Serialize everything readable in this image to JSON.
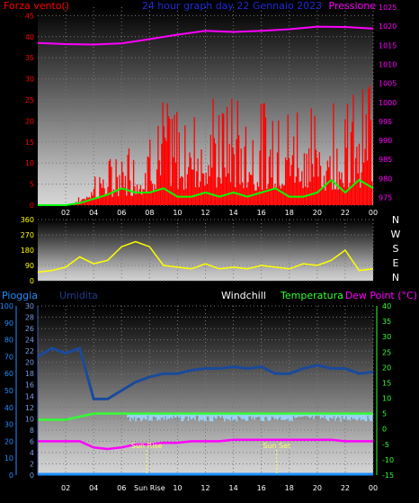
{
  "colors": {
    "background": "#000000",
    "wind": "#ff0000",
    "gust": "#00ff00",
    "pressure": "#ff00ff",
    "direction": "#ffff00",
    "rain": "#1e90ff",
    "humidity": "#1e3c8c",
    "windchill": "#ffffff",
    "temperature": "#33ff33",
    "dewpoint": "#ff00ff",
    "hum_fill": "#9bd7ff",
    "sun": "#ffff66"
  },
  "chart_data": [
    {
      "type": "line",
      "title": "24 hour graph day 22 Gennaio 2023",
      "left_label": "Forza vento()",
      "right_label": "Pressione",
      "x_ticks": [
        "02",
        "04",
        "06",
        "08",
        "10",
        "12",
        "14",
        "16",
        "18",
        "20",
        "22",
        "00"
      ],
      "left_ticks": [
        "0",
        "5",
        "10",
        "15",
        "20",
        "25",
        "30",
        "35",
        "40",
        "45"
      ],
      "right_ticks": [
        "975",
        "980",
        "985",
        "990",
        "995",
        "1000",
        "1005",
        "1010",
        "1015",
        "1020",
        "1025"
      ],
      "ylim_left": [
        0,
        47
      ],
      "ylim_right": [
        973,
        1025
      ],
      "x_hours": [
        0,
        2,
        4,
        6,
        8,
        10,
        12,
        14,
        16,
        18,
        20,
        22,
        24
      ],
      "pressure": [
        1015.6,
        1015.3,
        1015.2,
        1015.5,
        1016.6,
        1017.8,
        1018.8,
        1018.5,
        1018.8,
        1019.2,
        1019.9,
        1019.8,
        1019.4
      ],
      "gust": [
        0,
        0,
        0,
        0.5,
        1.5,
        2.5,
        4,
        3,
        3,
        4,
        2,
        2,
        3,
        2,
        3,
        2,
        3,
        4,
        2,
        2,
        3,
        6,
        3,
        6,
        4
      ],
      "wind_hours": [
        0,
        1,
        2,
        3,
        4,
        5,
        6,
        7,
        8,
        9,
        10,
        11,
        12,
        13,
        14,
        15,
        16,
        17,
        18,
        19,
        20,
        21,
        22,
        23,
        24
      ],
      "wind_max": [
        0,
        0,
        0,
        2,
        8,
        10,
        15,
        14,
        20,
        25,
        22,
        24,
        28,
        23,
        26,
        22,
        24,
        25,
        22,
        27,
        20,
        24,
        25,
        27,
        29
      ]
    },
    {
      "type": "line",
      "right_label": "N W S E N",
      "ticks": [
        "0",
        "90",
        "180",
        "270",
        "360"
      ],
      "ylim": [
        0,
        360
      ],
      "hours": [
        0,
        1,
        2,
        3,
        4,
        5,
        6,
        7,
        8,
        9,
        10,
        11,
        12,
        13,
        14,
        15,
        16,
        17,
        18,
        19,
        20,
        21,
        22,
        23,
        24
      ],
      "direction": [
        50,
        60,
        80,
        140,
        100,
        120,
        200,
        230,
        200,
        90,
        80,
        70,
        100,
        70,
        80,
        70,
        90,
        80,
        70,
        100,
        90,
        120,
        180,
        60,
        70
      ]
    },
    {
      "type": "line",
      "labels": [
        "Pioggia",
        "Umidita",
        "Windchill",
        "Temperatura",
        "Dew Point (°C)"
      ],
      "rain_ticks": [
        "0",
        "10",
        "20",
        "30",
        "40",
        "50",
        "60",
        "70",
        "80",
        "90",
        "100"
      ],
      "hum_ticks": [
        "0",
        "2",
        "4",
        "6",
        "8",
        "10",
        "12",
        "14",
        "16",
        "18",
        "20",
        "22",
        "24",
        "26",
        "28",
        "30"
      ],
      "temp_ticks": [
        "-15",
        "-10",
        "-5",
        "0",
        "5",
        "10",
        "15",
        "20",
        "25",
        "30",
        "35",
        "40"
      ],
      "x_ticks": [
        "02",
        "04",
        "06",
        "Sun Rise",
        "10",
        "12",
        "14",
        "16",
        "18",
        "20",
        "22",
        "00"
      ],
      "sun_rise_label": "Sun Rise",
      "sun_set_label": "Sun Set",
      "sun_rise_hour": 7.8,
      "sun_set_hour": 17.1,
      "hours": [
        0,
        1,
        2,
        3,
        4,
        5,
        6,
        7,
        8,
        9,
        10,
        11,
        12,
        13,
        14,
        15,
        16,
        17,
        18,
        19,
        20,
        21,
        22,
        23,
        24
      ],
      "humidity_pct": [
        70,
        75,
        72,
        75,
        45,
        45,
        50,
        55,
        58,
        60,
        60,
        62,
        63,
        63,
        64,
        63,
        64,
        60,
        60,
        63,
        65,
        63,
        63,
        60,
        61
      ],
      "temperature": [
        3,
        3,
        3,
        4,
        5,
        5,
        5,
        5,
        5,
        5,
        5,
        5,
        5,
        5,
        5,
        5,
        5,
        5,
        5,
        5,
        5,
        5,
        5,
        5,
        5
      ],
      "dewpoint": [
        -4,
        -4,
        -4,
        -4,
        -6,
        -6.5,
        -6,
        -5,
        -5,
        -4.5,
        -4.5,
        -4,
        -4,
        -4,
        -3.5,
        -3.5,
        -3.5,
        -3.5,
        -3.5,
        -3.5,
        -3.5,
        -3.5,
        -4,
        -4,
        -4
      ],
      "rain": [
        0,
        0,
        0,
        0,
        0,
        0,
        0,
        0,
        0,
        0,
        0,
        0,
        0,
        0,
        0,
        0,
        0,
        0,
        0,
        0,
        0,
        0,
        0,
        0,
        0
      ]
    }
  ]
}
